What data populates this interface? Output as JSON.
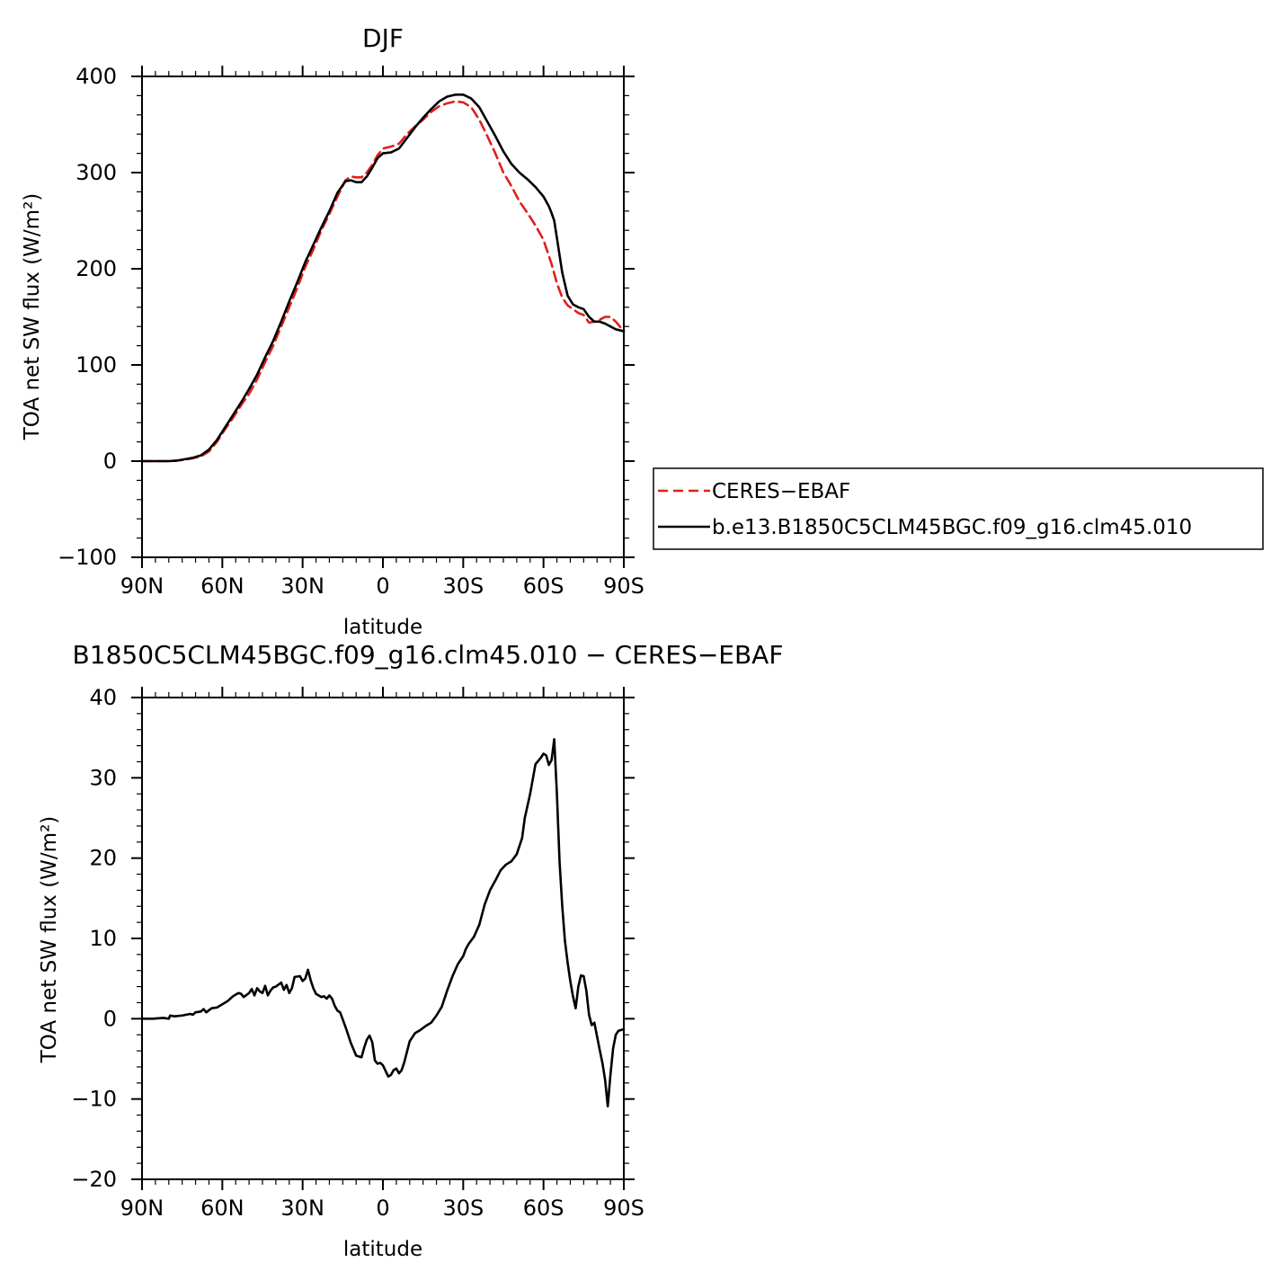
{
  "chart_data": [
    {
      "type": "line",
      "title": "DJF",
      "xlabel": "latitude",
      "ylabel": "TOA net SW flux (W/m²)",
      "xlim": [
        -90,
        90
      ],
      "ylim": [
        -100,
        400
      ],
      "xticks": [
        -90,
        -60,
        -30,
        0,
        30,
        60,
        90
      ],
      "xtick_labels": [
        "90N",
        "60N",
        "30N",
        "0",
        "30S",
        "60S",
        "90S"
      ],
      "yticks": [
        -100,
        0,
        100,
        200,
        300,
        400
      ],
      "ytick_labels": [
        "−100",
        "0",
        "100",
        "200",
        "300",
        "400"
      ],
      "legend_position": "right",
      "series": [
        {
          "name": "CERES−EBAF",
          "color": "#e0201b",
          "style": "dashed",
          "x": [
            -90,
            -85,
            -80,
            -77,
            -74,
            -71,
            -68,
            -65,
            -62,
            -59,
            -56,
            -53,
            -50,
            -47,
            -44,
            -41,
            -38,
            -35,
            -32,
            -29,
            -26,
            -23,
            -20,
            -17,
            -14,
            -12,
            -10,
            -8,
            -6,
            -4,
            -2,
            0,
            3,
            6,
            9,
            12,
            15,
            18,
            21,
            24,
            27,
            30,
            33,
            36,
            39,
            42,
            45,
            48,
            51,
            54,
            57,
            60,
            63,
            65,
            67,
            69,
            71,
            73,
            75,
            77,
            79,
            81,
            83,
            85,
            87,
            90
          ],
          "y": [
            0,
            0,
            0,
            0.5,
            1.5,
            3,
            5,
            10,
            20,
            33,
            45,
            58,
            70,
            85,
            103,
            120,
            140,
            160,
            180,
            202,
            220,
            240,
            257,
            275,
            292,
            296,
            295,
            295,
            300,
            308,
            318,
            325,
            327,
            330,
            340,
            348,
            355,
            363,
            369,
            372,
            374,
            373,
            368,
            355,
            338,
            320,
            300,
            286,
            270,
            258,
            245,
            230,
            205,
            185,
            170,
            162,
            158,
            154,
            152,
            144,
            145,
            147,
            150,
            150,
            145,
            135
          ]
        },
        {
          "name": "b.e13.B1850C5CLM45BGC.f09_g16.clm45.010",
          "color": "#000000",
          "style": "solid",
          "x": [
            -90,
            -85,
            -80,
            -77,
            -74,
            -71,
            -68,
            -65,
            -62,
            -59,
            -56,
            -53,
            -50,
            -47,
            -44,
            -41,
            -38,
            -35,
            -32,
            -29,
            -26,
            -23,
            -20,
            -17,
            -14,
            -12,
            -10,
            -8,
            -6,
            -4,
            -2,
            0,
            3,
            6,
            9,
            12,
            15,
            18,
            21,
            24,
            27,
            30,
            33,
            36,
            39,
            42,
            45,
            48,
            51,
            54,
            57,
            60,
            62,
            63,
            64,
            65,
            67,
            69,
            71,
            73,
            75,
            77,
            79,
            81,
            83,
            85,
            87,
            90
          ],
          "y": [
            0,
            0,
            0,
            0.5,
            2,
            3.5,
            6,
            12,
            22,
            35,
            48,
            61,
            75,
            90,
            108,
            125,
            145,
            166,
            186,
            207,
            225,
            243,
            260,
            279,
            291,
            292,
            290,
            290,
            296,
            305,
            315,
            320,
            321,
            325,
            336,
            347,
            357,
            366,
            374,
            379,
            381,
            381,
            377,
            368,
            353,
            338,
            322,
            309,
            300,
            293,
            285,
            275,
            265,
            258,
            250,
            232,
            196,
            172,
            163,
            160,
            158,
            150,
            145,
            145,
            143,
            140,
            137,
            135
          ]
        }
      ]
    },
    {
      "type": "line",
      "title": "B1850C5CLM45BGC.f09_g16.clm45.010 − CERES−EBAF",
      "xlabel": "latitude",
      "ylabel": "TOA net SW flux (W/m²)",
      "xlim": [
        -90,
        90
      ],
      "ylim": [
        -20,
        40
      ],
      "xticks": [
        -90,
        -60,
        -30,
        0,
        30,
        60,
        90
      ],
      "xtick_labels": [
        "90N",
        "60N",
        "30N",
        "0",
        "30S",
        "60S",
        "90S"
      ],
      "yticks": [
        -20,
        -10,
        0,
        10,
        20,
        30,
        40
      ],
      "ytick_labels": [
        "−20",
        "−10",
        "0",
        "10",
        "20",
        "30",
        "40"
      ],
      "series": [
        {
          "color": "#000000",
          "style": "solid",
          "x": [
            -90,
            -86,
            -82,
            -80,
            -79.5,
            -78,
            -75,
            -72,
            -71,
            -70,
            -68,
            -67,
            -66,
            -64,
            -62,
            -60,
            -58,
            -56,
            -54,
            -53,
            -52,
            -50,
            -49,
            -48,
            -47,
            -46,
            -45,
            -44,
            -43,
            -42,
            -41,
            -40,
            -38,
            -37,
            -36,
            -35,
            -34,
            -33,
            -31,
            -30,
            -29,
            -28,
            -27,
            -26,
            -25,
            -23,
            -22,
            -21,
            -20,
            -19,
            -18,
            -17,
            -16,
            -14,
            -12,
            -10,
            -8,
            -7,
            -6,
            -5,
            -4,
            -3,
            -2,
            -1,
            0,
            1,
            2,
            3,
            4,
            5,
            6,
            7,
            8,
            10,
            12,
            14,
            16,
            18,
            20,
            22,
            24,
            26,
            28,
            29,
            30,
            31,
            32,
            34,
            36,
            38,
            40,
            42,
            44,
            46,
            48,
            50,
            52,
            53,
            55,
            57,
            59,
            60,
            61,
            62,
            63,
            64,
            65,
            66,
            67,
            68,
            69,
            70,
            71,
            72,
            73,
            74,
            75,
            76,
            77,
            78,
            79,
            80,
            81,
            82,
            83,
            84,
            85,
            86,
            87,
            88,
            89,
            90
          ],
          "y": [
            0,
            0,
            0.1,
            0,
            0.4,
            0.3,
            0.4,
            0.6,
            0.5,
            0.8,
            0.9,
            1.2,
            0.8,
            1.3,
            1.4,
            1.8,
            2.2,
            2.8,
            3.2,
            3.1,
            2.7,
            3.2,
            3.7,
            2.9,
            3.8,
            3.4,
            3.2,
            4.1,
            2.9,
            3.5,
            3.9,
            4.0,
            4.5,
            3.6,
            4.2,
            3.2,
            3.8,
            5.2,
            5.3,
            4.7,
            5.0,
            6.1,
            4.8,
            3.8,
            3.1,
            2.7,
            2.8,
            2.5,
            2.9,
            2.5,
            1.6,
            1.0,
            0.8,
            -1.0,
            -3.0,
            -4.6,
            -4.8,
            -3.6,
            -2.6,
            -2.1,
            -2.9,
            -5.2,
            -5.6,
            -5.5,
            -5.8,
            -6.5,
            -7.2,
            -7.0,
            -6.4,
            -6.2,
            -6.8,
            -6.4,
            -5.4,
            -2.8,
            -1.8,
            -1.4,
            -0.9,
            -0.5,
            0.4,
            1.5,
            3.5,
            5.3,
            6.8,
            7.3,
            7.8,
            8.7,
            9.3,
            10.2,
            11.7,
            14.2,
            16.0,
            17.2,
            18.5,
            19.2,
            19.6,
            20.5,
            22.5,
            25.0,
            28.0,
            31.7,
            32.5,
            33.0,
            32.8,
            31.6,
            32.2,
            34.8,
            28.0,
            19.5,
            14.0,
            9.7,
            7.0,
            4.7,
            2.8,
            1.3,
            4.0,
            5.4,
            5.3,
            3.5,
            0.5,
            -0.8,
            -0.5,
            -2.2,
            -3.9,
            -5.5,
            -7.6,
            -10.9,
            -7.0,
            -3.7,
            -2.0,
            -1.5,
            -1.4,
            -1.3
          ]
        }
      ]
    }
  ]
}
